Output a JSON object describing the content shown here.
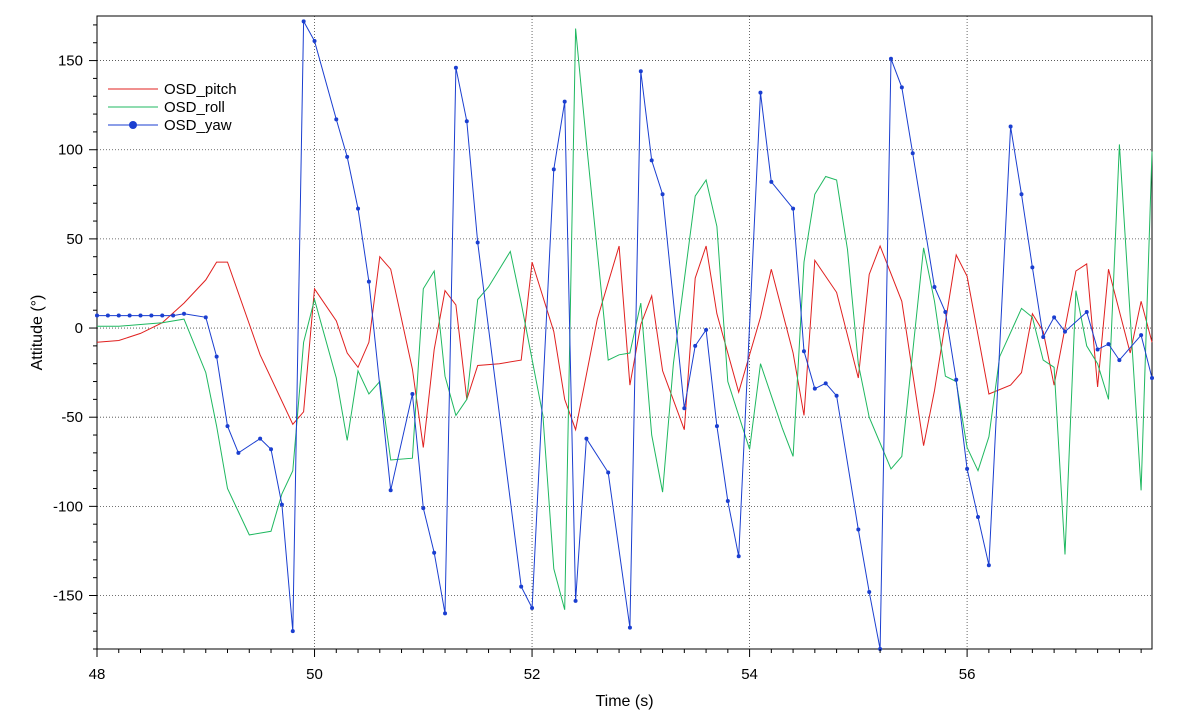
{
  "chart_data": {
    "type": "line",
    "title": "",
    "xlabel": "Time (s)",
    "ylabel": "Attitude (°)",
    "xlim": [
      48.0,
      57.7
    ],
    "ylim": [
      -180,
      175
    ],
    "xticks": [
      48,
      50,
      52,
      54,
      56
    ],
    "yticks": [
      -150,
      -100,
      -50,
      0,
      50,
      100,
      150
    ],
    "xtick_labels": [
      "48",
      "50",
      "52",
      "54",
      "56"
    ],
    "ytick_labels": [
      "-150",
      "-100",
      "-50",
      "0",
      "50",
      "100",
      "150"
    ],
    "grid": "dotted",
    "legend": "top-left",
    "series": [
      {
        "name": "OSD_pitch",
        "color": "#e0201f",
        "markers": false,
        "x": [
          48.0,
          48.2,
          48.4,
          48.6,
          48.8,
          49.0,
          49.1,
          49.2,
          49.5,
          49.8,
          49.9,
          50.0,
          50.2,
          50.3,
          50.4,
          50.5,
          50.6,
          50.7,
          50.9,
          51.0,
          51.1,
          51.2,
          51.3,
          51.4,
          51.5,
          51.7,
          51.9,
          52.0,
          52.2,
          52.3,
          52.4,
          52.6,
          52.8,
          52.9,
          53.0,
          53.1,
          53.2,
          53.4,
          53.5,
          53.6,
          53.7,
          53.9,
          54.1,
          54.2,
          54.4,
          54.5,
          54.6,
          54.8,
          55.0,
          55.1,
          55.2,
          55.4,
          55.6,
          55.7,
          55.9,
          56.0,
          56.2,
          56.4,
          56.5,
          56.6,
          56.7,
          56.8,
          57.0,
          57.1,
          57.2,
          57.3,
          57.5,
          57.6,
          57.7
        ],
        "y": [
          -8,
          -7,
          -3,
          3,
          14,
          27,
          37,
          37,
          -15,
          -54,
          -47,
          22,
          4,
          -14,
          -22,
          -8,
          40,
          33,
          -23,
          -67,
          -12,
          21,
          13,
          -40,
          -21,
          -20,
          -18,
          37,
          -2,
          -40,
          -57,
          5,
          46,
          -32,
          2,
          18,
          -24,
          -57,
          28,
          46,
          8,
          -36,
          6,
          33,
          -14,
          -49,
          38,
          20,
          -28,
          30,
          46,
          15,
          -66,
          -35,
          41,
          29,
          -37,
          -32,
          -25,
          8,
          -2,
          -32,
          32,
          36,
          -33,
          33,
          -14,
          15,
          -8
        ]
      },
      {
        "name": "OSD_roll",
        "color": "#1fb860",
        "markers": false,
        "x": [
          48.0,
          48.2,
          48.4,
          48.6,
          48.8,
          49.0,
          49.1,
          49.2,
          49.4,
          49.6,
          49.7,
          49.8,
          49.9,
          50.0,
          50.2,
          50.3,
          50.4,
          50.5,
          50.6,
          50.7,
          50.9,
          51.0,
          51.1,
          51.2,
          51.3,
          51.4,
          51.5,
          51.6,
          51.8,
          51.9,
          52.1,
          52.2,
          52.3,
          52.4,
          52.5,
          52.7,
          52.8,
          52.9,
          53.0,
          53.1,
          53.2,
          53.3,
          53.5,
          53.6,
          53.7,
          53.8,
          54.0,
          54.1,
          54.3,
          54.4,
          54.5,
          54.6,
          54.7,
          54.8,
          54.9,
          55.0,
          55.1,
          55.3,
          55.4,
          55.6,
          55.7,
          55.8,
          55.9,
          56.0,
          56.1,
          56.2,
          56.3,
          56.5,
          56.6,
          56.7,
          56.8,
          56.9,
          57.0,
          57.1,
          57.2,
          57.3,
          57.4,
          57.6,
          57.7
        ],
        "y": [
          1,
          1,
          2,
          3,
          5,
          -25,
          -55,
          -90,
          -116,
          -114,
          -93,
          -80,
          -8,
          16,
          -28,
          -63,
          -24,
          -37,
          -30,
          -74,
          -73,
          22,
          32,
          -27,
          -49,
          -40,
          16,
          23,
          43,
          14,
          -49,
          -135,
          -158,
          168,
          104,
          -18,
          -15,
          -14,
          14,
          -60,
          -92,
          -20,
          74,
          83,
          57,
          -30,
          -68,
          -20,
          -56,
          -72,
          37,
          75,
          85,
          83,
          44,
          -20,
          -50,
          -79,
          -72,
          45,
          15,
          -27,
          -30,
          -67,
          -80,
          -61,
          -16,
          11,
          6,
          -18,
          -22,
          -127,
          21,
          -10,
          -20,
          -40,
          103,
          -91,
          99
        ]
      },
      {
        "name": "OSD_yaw",
        "color": "#1a3ed0",
        "markers": true,
        "x": [
          48.0,
          48.1,
          48.2,
          48.3,
          48.4,
          48.5,
          48.6,
          48.7,
          48.8,
          49.0,
          49.1,
          49.2,
          49.3,
          49.5,
          49.6,
          49.7,
          49.8,
          49.9,
          50.0,
          50.2,
          50.3,
          50.4,
          50.5,
          50.7,
          50.9,
          51.0,
          51.1,
          51.2,
          51.3,
          51.4,
          51.5,
          51.9,
          52.0,
          52.2,
          52.3,
          52.4,
          52.5,
          52.7,
          52.9,
          53.0,
          53.1,
          53.2,
          53.4,
          53.5,
          53.6,
          53.7,
          53.8,
          53.9,
          54.1,
          54.2,
          54.4,
          54.5,
          54.6,
          54.7,
          54.8,
          55.0,
          55.1,
          55.2,
          55.3,
          55.4,
          55.5,
          55.7,
          55.8,
          55.9,
          56.0,
          56.1,
          56.2,
          56.4,
          56.5,
          56.6,
          56.7,
          56.8,
          56.9,
          57.1,
          57.2,
          57.3,
          57.4,
          57.6,
          57.7
        ],
        "y": [
          7,
          7,
          7,
          7,
          7,
          7,
          7,
          7,
          8,
          6,
          -16,
          -55,
          -70,
          -62,
          -68,
          -99,
          -170,
          172,
          161,
          117,
          96,
          67,
          26,
          -91,
          -37,
          -101,
          -126,
          -160,
          146,
          116,
          48,
          -145,
          -157,
          89,
          127,
          -153,
          -62,
          -81,
          -168,
          144,
          94,
          75,
          -45,
          -10,
          -1,
          -55,
          -97,
          -128,
          132,
          82,
          67,
          -13,
          -34,
          -31,
          -38,
          -113,
          -148,
          -180,
          151,
          135,
          98,
          23,
          9,
          -29,
          -79,
          -106,
          -133,
          113,
          75,
          34,
          -5,
          6,
          -2,
          9,
          -12,
          -9,
          -18,
          -4,
          -28
        ]
      }
    ]
  }
}
